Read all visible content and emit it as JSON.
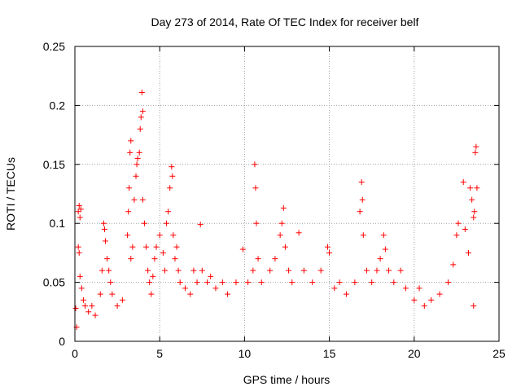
{
  "chart_data": {
    "type": "scatter",
    "title": "Day 273 of 2014, Rate Of TEC Index for receiver belf",
    "xlabel": "GPS time / hours",
    "ylabel": "ROTI / TECUs",
    "xlim": [
      0,
      25
    ],
    "ylim": [
      0,
      0.25
    ],
    "grid": true,
    "marker": "+",
    "color": "#ff0000",
    "x_ticks": [
      0,
      5,
      10,
      15,
      20,
      25
    ],
    "x_tick_labels": [
      "0",
      "5",
      "10",
      "15",
      "20",
      "25"
    ],
    "y_ticks": [
      0,
      0.05,
      0.1,
      0.15,
      0.2,
      0.25
    ],
    "y_tick_labels": [
      "0",
      "0.05",
      "0.1",
      "0.15",
      "0.2",
      "0.25"
    ],
    "series": [
      {
        "name": "ROTI",
        "points": [
          [
            0.05,
            0.028
          ],
          [
            0.1,
            0.012
          ],
          [
            0.2,
            0.11
          ],
          [
            0.25,
            0.115
          ],
          [
            0.3,
            0.105
          ],
          [
            0.35,
            0.112
          ],
          [
            0.2,
            0.08
          ],
          [
            0.25,
            0.075
          ],
          [
            0.3,
            0.055
          ],
          [
            0.4,
            0.045
          ],
          [
            0.5,
            0.035
          ],
          [
            0.6,
            0.03
          ],
          [
            0.8,
            0.025
          ],
          [
            1.0,
            0.03
          ],
          [
            1.2,
            0.022
          ],
          [
            1.5,
            0.04
          ],
          [
            1.6,
            0.06
          ],
          [
            1.7,
            0.1
          ],
          [
            1.75,
            0.095
          ],
          [
            1.8,
            0.085
          ],
          [
            1.9,
            0.07
          ],
          [
            2.0,
            0.06
          ],
          [
            2.1,
            0.05
          ],
          [
            2.2,
            0.04
          ],
          [
            2.5,
            0.03
          ],
          [
            2.8,
            0.035
          ],
          [
            3.1,
            0.09
          ],
          [
            3.15,
            0.11
          ],
          [
            3.2,
            0.13
          ],
          [
            3.25,
            0.16
          ],
          [
            3.3,
            0.17
          ],
          [
            3.3,
            0.07
          ],
          [
            3.4,
            0.08
          ],
          [
            3.5,
            0.12
          ],
          [
            3.6,
            0.14
          ],
          [
            3.65,
            0.15
          ],
          [
            3.7,
            0.155
          ],
          [
            3.8,
            0.16
          ],
          [
            3.85,
            0.18
          ],
          [
            3.9,
            0.19
          ],
          [
            3.95,
            0.211
          ],
          [
            4.0,
            0.195
          ],
          [
            4.0,
            0.12
          ],
          [
            4.1,
            0.1
          ],
          [
            4.2,
            0.08
          ],
          [
            4.3,
            0.06
          ],
          [
            4.4,
            0.05
          ],
          [
            4.5,
            0.04
          ],
          [
            4.6,
            0.055
          ],
          [
            4.7,
            0.07
          ],
          [
            4.8,
            0.08
          ],
          [
            5.0,
            0.09
          ],
          [
            5.2,
            0.075
          ],
          [
            5.3,
            0.06
          ],
          [
            5.4,
            0.1
          ],
          [
            5.5,
            0.11
          ],
          [
            5.6,
            0.13
          ],
          [
            5.7,
            0.148
          ],
          [
            5.75,
            0.14
          ],
          [
            5.8,
            0.09
          ],
          [
            5.9,
            0.07
          ],
          [
            6.0,
            0.08
          ],
          [
            6.1,
            0.06
          ],
          [
            6.2,
            0.05
          ],
          [
            6.5,
            0.045
          ],
          [
            6.8,
            0.04
          ],
          [
            7.0,
            0.06
          ],
          [
            7.2,
            0.05
          ],
          [
            7.4,
            0.099
          ],
          [
            7.5,
            0.06
          ],
          [
            7.8,
            0.05
          ],
          [
            8.0,
            0.055
          ],
          [
            8.3,
            0.045
          ],
          [
            8.7,
            0.05
          ],
          [
            9.0,
            0.04
          ],
          [
            9.5,
            0.05
          ],
          [
            9.9,
            0.078
          ],
          [
            10.2,
            0.05
          ],
          [
            10.5,
            0.06
          ],
          [
            10.6,
            0.15
          ],
          [
            10.65,
            0.13
          ],
          [
            10.7,
            0.1
          ],
          [
            10.8,
            0.07
          ],
          [
            11.0,
            0.05
          ],
          [
            11.5,
            0.06
          ],
          [
            11.8,
            0.07
          ],
          [
            12.1,
            0.09
          ],
          [
            12.2,
            0.1
          ],
          [
            12.3,
            0.113
          ],
          [
            12.4,
            0.08
          ],
          [
            12.6,
            0.06
          ],
          [
            12.8,
            0.05
          ],
          [
            13.2,
            0.092
          ],
          [
            13.5,
            0.06
          ],
          [
            14.0,
            0.05
          ],
          [
            14.5,
            0.06
          ],
          [
            14.9,
            0.08
          ],
          [
            15.0,
            0.075
          ],
          [
            15.3,
            0.045
          ],
          [
            15.6,
            0.05
          ],
          [
            16.0,
            0.04
          ],
          [
            16.5,
            0.05
          ],
          [
            16.8,
            0.11
          ],
          [
            16.9,
            0.135
          ],
          [
            16.95,
            0.12
          ],
          [
            17.0,
            0.09
          ],
          [
            17.2,
            0.06
          ],
          [
            17.5,
            0.05
          ],
          [
            17.8,
            0.06
          ],
          [
            18.0,
            0.07
          ],
          [
            18.2,
            0.09
          ],
          [
            18.3,
            0.078
          ],
          [
            18.5,
            0.06
          ],
          [
            18.8,
            0.05
          ],
          [
            19.2,
            0.06
          ],
          [
            19.5,
            0.045
          ],
          [
            20.0,
            0.035
          ],
          [
            20.3,
            0.045
          ],
          [
            20.6,
            0.03
          ],
          [
            21.0,
            0.035
          ],
          [
            21.5,
            0.04
          ],
          [
            22.0,
            0.05
          ],
          [
            22.3,
            0.065
          ],
          [
            22.5,
            0.09
          ],
          [
            22.6,
            0.1
          ],
          [
            22.9,
            0.135
          ],
          [
            23.0,
            0.095
          ],
          [
            23.2,
            0.075
          ],
          [
            23.3,
            0.13
          ],
          [
            23.4,
            0.12
          ],
          [
            23.5,
            0.105
          ],
          [
            23.55,
            0.11
          ],
          [
            23.6,
            0.16
          ],
          [
            23.65,
            0.165
          ],
          [
            23.7,
            0.13
          ],
          [
            23.5,
            0.03
          ]
        ]
      }
    ]
  }
}
